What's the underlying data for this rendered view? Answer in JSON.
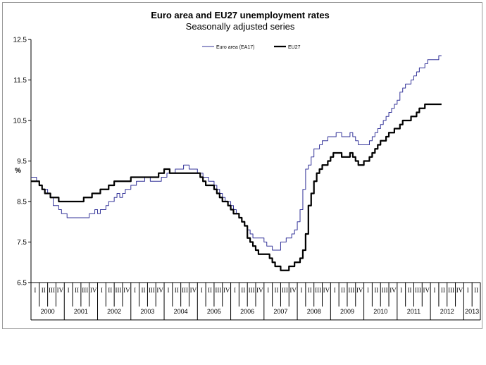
{
  "chart_data": {
    "type": "line",
    "title": "Euro area and EU27 unemployment rates",
    "subtitle": "Seasonally adjusted series",
    "ylabel": "%",
    "ylim": [
      6.5,
      12.5
    ],
    "y_ticks": [
      "12.5",
      "11.5",
      "10.5",
      "9.5",
      "8.5",
      "7.5",
      "6.5"
    ],
    "quarter_labels": [
      "I",
      "II",
      "III",
      "IV"
    ],
    "years": [
      "2000",
      "2001",
      "2002",
      "2003",
      "2004",
      "2005",
      "2006",
      "2007",
      "2008",
      "2009",
      "2010",
      "2011",
      "2012",
      "2013"
    ],
    "x_start": "2000-01",
    "x_end": "2013-04",
    "legend_position": "top",
    "gridlines": false,
    "series": [
      {
        "name": "Euro area (EA17)",
        "color": "#333399",
        "values": [
          9.1,
          9.1,
          9.0,
          8.9,
          8.8,
          8.8,
          8.7,
          8.6,
          8.4,
          8.4,
          8.3,
          8.2,
          8.2,
          8.1,
          8.1,
          8.1,
          8.1,
          8.1,
          8.1,
          8.1,
          8.1,
          8.2,
          8.2,
          8.3,
          8.2,
          8.3,
          8.3,
          8.4,
          8.5,
          8.5,
          8.6,
          8.7,
          8.6,
          8.7,
          8.8,
          8.8,
          8.9,
          8.9,
          9.0,
          9.0,
          9.0,
          9.1,
          9.1,
          9.0,
          9.0,
          9.0,
          9.0,
          9.1,
          9.1,
          9.2,
          9.2,
          9.2,
          9.3,
          9.3,
          9.3,
          9.4,
          9.4,
          9.3,
          9.3,
          9.3,
          9.2,
          9.2,
          9.1,
          9.1,
          9.0,
          9.0,
          8.9,
          8.8,
          8.7,
          8.6,
          8.5,
          8.5,
          8.4,
          8.3,
          8.2,
          8.1,
          8.0,
          7.9,
          7.8,
          7.7,
          7.6,
          7.6,
          7.6,
          7.6,
          7.5,
          7.4,
          7.4,
          7.3,
          7.3,
          7.3,
          7.5,
          7.5,
          7.6,
          7.6,
          7.7,
          7.8,
          8.0,
          8.3,
          8.8,
          9.3,
          9.4,
          9.6,
          9.8,
          9.8,
          9.9,
          10.0,
          10.0,
          10.1,
          10.1,
          10.1,
          10.2,
          10.2,
          10.1,
          10.1,
          10.1,
          10.2,
          10.1,
          10.0,
          9.9,
          9.9,
          9.9,
          9.9,
          10.0,
          10.1,
          10.2,
          10.3,
          10.4,
          10.5,
          10.6,
          10.7,
          10.8,
          10.9,
          11.0,
          11.2,
          11.3,
          11.4,
          11.4,
          11.5,
          11.6,
          11.7,
          11.8,
          11.8,
          11.9,
          12.0,
          12.0,
          12.0,
          12.0,
          12.1
        ]
      },
      {
        "name": "EU27",
        "color": "#000000",
        "values": [
          9.0,
          9.0,
          9.0,
          8.9,
          8.8,
          8.7,
          8.7,
          8.6,
          8.6,
          8.6,
          8.5,
          8.5,
          8.5,
          8.5,
          8.5,
          8.5,
          8.5,
          8.5,
          8.5,
          8.6,
          8.6,
          8.6,
          8.7,
          8.7,
          8.7,
          8.8,
          8.8,
          8.8,
          8.9,
          8.9,
          9.0,
          9.0,
          9.0,
          9.0,
          9.0,
          9.0,
          9.1,
          9.1,
          9.1,
          9.1,
          9.1,
          9.1,
          9.1,
          9.1,
          9.1,
          9.1,
          9.2,
          9.2,
          9.3,
          9.3,
          9.2,
          9.2,
          9.2,
          9.2,
          9.2,
          9.2,
          9.2,
          9.2,
          9.2,
          9.2,
          9.2,
          9.1,
          9.0,
          8.9,
          8.9,
          8.9,
          8.8,
          8.7,
          8.6,
          8.5,
          8.5,
          8.4,
          8.3,
          8.2,
          8.2,
          8.1,
          8.0,
          7.9,
          7.6,
          7.5,
          7.4,
          7.3,
          7.2,
          7.2,
          7.2,
          7.2,
          7.1,
          7.0,
          6.9,
          6.9,
          6.8,
          6.8,
          6.8,
          6.9,
          6.9,
          7.0,
          7.0,
          7.1,
          7.3,
          7.7,
          8.4,
          8.7,
          9.0,
          9.2,
          9.3,
          9.4,
          9.4,
          9.5,
          9.6,
          9.7,
          9.7,
          9.7,
          9.6,
          9.6,
          9.6,
          9.7,
          9.6,
          9.5,
          9.4,
          9.4,
          9.5,
          9.5,
          9.6,
          9.7,
          9.8,
          9.9,
          10.0,
          10.0,
          10.1,
          10.2,
          10.2,
          10.3,
          10.3,
          10.4,
          10.5,
          10.5,
          10.5,
          10.6,
          10.6,
          10.7,
          10.8,
          10.8,
          10.9,
          10.9,
          10.9,
          10.9,
          10.9,
          10.9
        ]
      }
    ]
  }
}
